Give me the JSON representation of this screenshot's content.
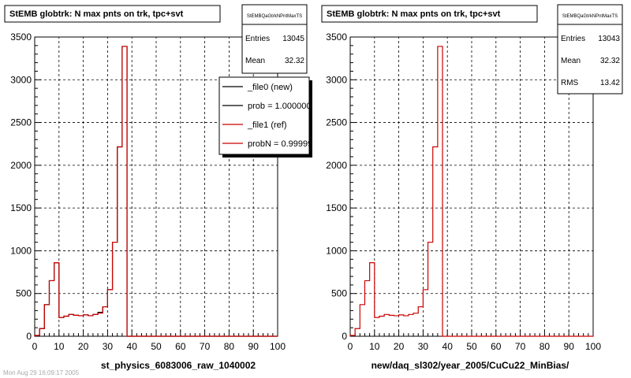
{
  "chart_data": [
    {
      "type": "histogram",
      "title": "StEMB globtrk: N max pnts on trk, tpc+svt",
      "xlabel": "st_physics_6083006_raw_1040002",
      "ylabel": "",
      "xlim": [
        0,
        100
      ],
      "ylim": [
        0,
        3500
      ],
      "grid": true,
      "x_ticks": [
        "0",
        "10",
        "20",
        "30",
        "40",
        "50",
        "60",
        "70",
        "80",
        "90",
        "100"
      ],
      "y_ticks": [
        "0",
        "500",
        "1000",
        "1500",
        "2000",
        "2500",
        "3000",
        "3500"
      ],
      "bins": {
        "start": 0,
        "width": 2,
        "count": 50
      },
      "stats_box": {
        "name": "StEMBQaGtrkNPntMaxTS",
        "entries_label": "Entries",
        "entries": "13045",
        "mean_label": "Mean",
        "mean": "32.32"
      },
      "legend": {
        "placement": "right",
        "entries": [
          {
            "label": "_file0 (new)",
            "color": "#000000"
          },
          {
            "label": "prob = 1.000000",
            "color": "#000000"
          },
          {
            "label": "_file1 (ref)",
            "color": "#cc0000"
          },
          {
            "label": "probN = 0.999995",
            "color": "#cc0000"
          }
        ]
      },
      "series": [
        {
          "color": "#000000",
          "values": [
            10,
            90,
            370,
            650,
            860,
            220,
            235,
            255,
            245,
            240,
            250,
            240,
            255,
            280,
            345,
            545,
            1100,
            2215,
            3390,
            0,
            0,
            0,
            0,
            0,
            0,
            0,
            0,
            0,
            0,
            0,
            0,
            0,
            0,
            0,
            0,
            0,
            0,
            0,
            0,
            0,
            0,
            0,
            0,
            0,
            0,
            0,
            0,
            0,
            0,
            0
          ]
        },
        {
          "color": "#cc0000",
          "values": [
            10,
            90,
            370,
            650,
            860,
            220,
            235,
            255,
            245,
            240,
            250,
            240,
            255,
            270,
            345,
            545,
            1100,
            2215,
            3390,
            0,
            0,
            0,
            0,
            0,
            0,
            0,
            0,
            0,
            0,
            0,
            0,
            0,
            0,
            0,
            0,
            0,
            0,
            0,
            0,
            0,
            0,
            0,
            0,
            0,
            0,
            0,
            0,
            0,
            0,
            0
          ]
        }
      ]
    },
    {
      "type": "histogram",
      "title": "StEMB globtrk: N max pnts on trk, tpc+svt",
      "xlabel": "new/daq_sl302/year_2005/CuCu22_MinBias/",
      "ylabel": "",
      "xlim": [
        0,
        100
      ],
      "ylim": [
        0,
        3500
      ],
      "grid": true,
      "x_ticks": [
        "0",
        "10",
        "20",
        "30",
        "40",
        "50",
        "60",
        "70",
        "80",
        "90",
        "100"
      ],
      "y_ticks": [
        "0",
        "500",
        "1000",
        "1500",
        "2000",
        "2500",
        "3000",
        "3500"
      ],
      "bins": {
        "start": 0,
        "width": 2,
        "count": 50
      },
      "stats_box": {
        "name": "StEMBQaGtrkNPntMaxTS",
        "entries_label": "Entries",
        "entries": "13043",
        "mean_label": "Mean",
        "mean": "32.32",
        "rms_label": "RMS",
        "rms": "13.42"
      },
      "series": [
        {
          "color": "#cc0000",
          "values": [
            10,
            90,
            370,
            650,
            860,
            220,
            235,
            255,
            245,
            240,
            250,
            240,
            255,
            270,
            345,
            545,
            1100,
            2215,
            3390,
            0,
            0,
            0,
            0,
            0,
            0,
            0,
            0,
            0,
            0,
            0,
            0,
            0,
            0,
            0,
            0,
            0,
            0,
            0,
            0,
            0,
            0,
            0,
            0,
            0,
            0,
            0,
            0,
            0,
            0,
            0
          ]
        }
      ]
    }
  ],
  "footer_text": "Mon Aug 29 16:09:17 2005"
}
